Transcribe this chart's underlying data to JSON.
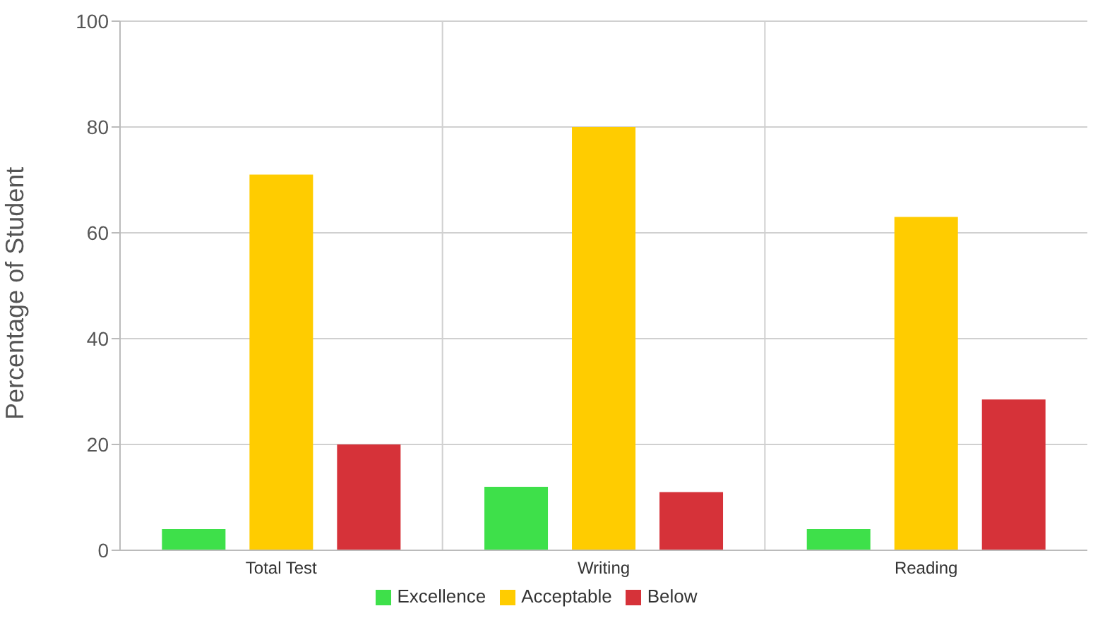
{
  "chart_data": {
    "type": "bar",
    "ylabel": "Percentage of Student",
    "categories": [
      "Total Test",
      "Writing",
      "Reading"
    ],
    "series": [
      {
        "name": "Excellence",
        "color": "#3ee04a",
        "values": [
          4,
          12,
          4
        ]
      },
      {
        "name": "Acceptable",
        "color": "#ffcc00",
        "values": [
          71,
          80,
          63
        ]
      },
      {
        "name": "Below",
        "color": "#d63239",
        "values": [
          20,
          11,
          28.5
        ]
      }
    ],
    "ylim": [
      0,
      100
    ],
    "yticks": [
      0,
      20,
      40,
      60,
      80,
      100
    ],
    "grid": true,
    "legend": "bottom"
  }
}
